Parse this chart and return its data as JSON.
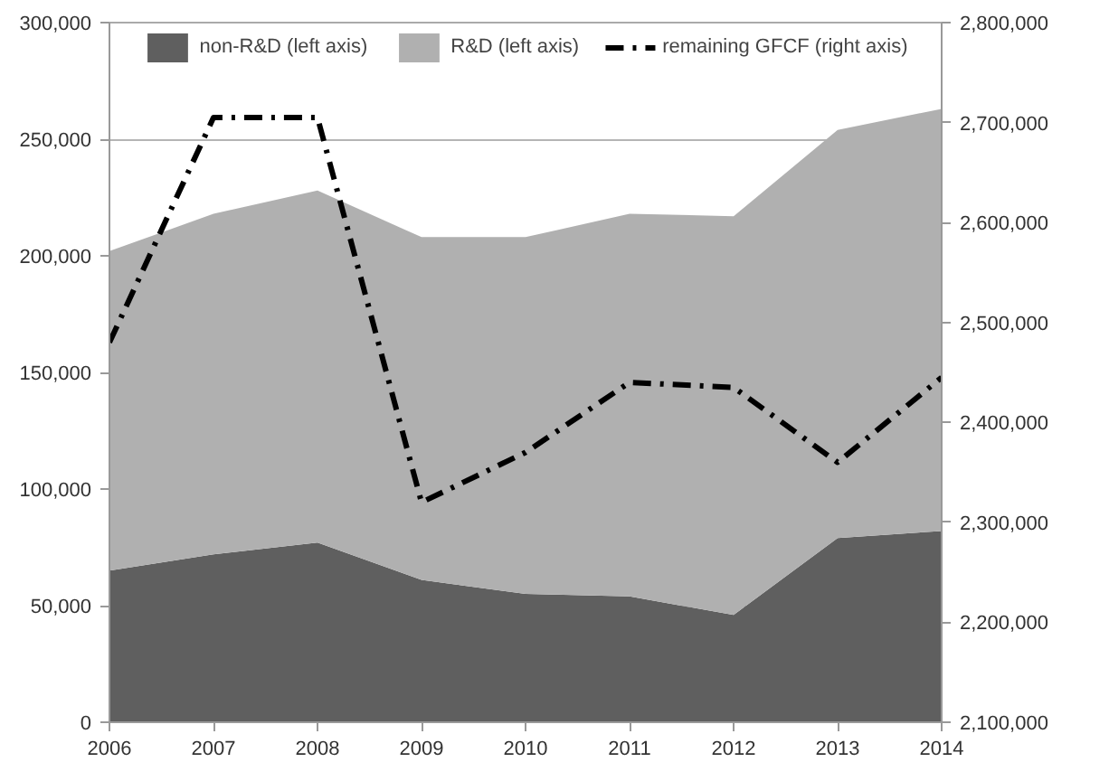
{
  "chart_data": {
    "type": "area",
    "stacked": true,
    "categories": [
      "2006",
      "2007",
      "2008",
      "2009",
      "2010",
      "2011",
      "2012",
      "2013",
      "2014"
    ],
    "series": [
      {
        "name": "non-R&D (left axis)",
        "color": "#5f5f5f",
        "values": [
          65000,
          72000,
          77000,
          61000,
          55000,
          54000,
          46000,
          79000,
          82000
        ]
      },
      {
        "name": "R&D (left axis)",
        "color": "#b0b0b0",
        "values": [
          137000,
          146000,
          151000,
          147000,
          153000,
          164000,
          171000,
          175000,
          181000
        ]
      },
      {
        "name": "remaining GFCF (right axis)",
        "type": "line",
        "axis": "y2",
        "color": "#000000",
        "line_style": "dashdot",
        "values": [
          2480000,
          2705000,
          2705000,
          2320000,
          2370000,
          2440000,
          2435000,
          2360000,
          2445000
        ]
      }
    ],
    "ylim": [
      0,
      300000
    ],
    "yticks": [
      {
        "value": 0,
        "label": "0"
      },
      {
        "value": 50000,
        "label": "50,000"
      },
      {
        "value": 100000,
        "label": "100,000"
      },
      {
        "value": 150000,
        "label": "150,000"
      },
      {
        "value": 200000,
        "label": "200,000"
      },
      {
        "value": 250000,
        "label": "250,000"
      },
      {
        "value": 300000,
        "label": "300,000"
      }
    ],
    "y2lim": [
      2100000,
      2800000
    ],
    "y2ticks": [
      {
        "value": 2100000,
        "label": "2,100,000"
      },
      {
        "value": 2200000,
        "label": "2,200,000"
      },
      {
        "value": 2300000,
        "label": "2,300,000"
      },
      {
        "value": 2400000,
        "label": "2,400,000"
      },
      {
        "value": 2500000,
        "label": "2,500,000"
      },
      {
        "value": 2600000,
        "label": "2,600,000"
      },
      {
        "value": 2700000,
        "label": "2,700,000"
      },
      {
        "value": 2800000,
        "label": "2,800,000"
      }
    ],
    "grid": "y",
    "legend": "top"
  }
}
